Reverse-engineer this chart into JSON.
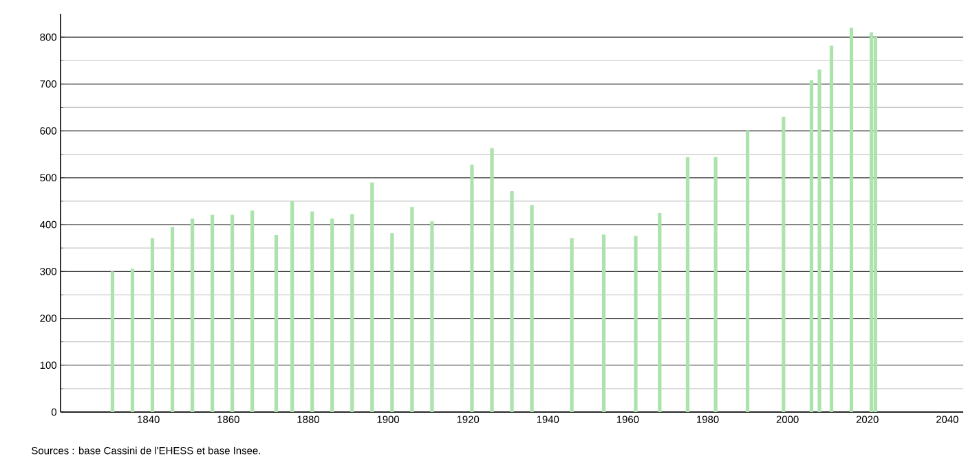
{
  "chart_data": {
    "type": "bar",
    "x": [
      1831,
      1836,
      1841,
      1846,
      1851,
      1856,
      1861,
      1866,
      1872,
      1876,
      1881,
      1886,
      1891,
      1896,
      1901,
      1906,
      1911,
      1921,
      1926,
      1931,
      1936,
      1946,
      1954,
      1962,
      1968,
      1975,
      1982,
      1990,
      1999,
      2006,
      2008,
      2011,
      2016,
      2021,
      2022
    ],
    "values": [
      300,
      306,
      371,
      395,
      413,
      421,
      421,
      430,
      378,
      450,
      428,
      413,
      422,
      490,
      382,
      438,
      407,
      528,
      563,
      472,
      442,
      371,
      379,
      376,
      425,
      544,
      544,
      600,
      630,
      708,
      731,
      782,
      820,
      810,
      800
    ],
    "color": "#ace3ac",
    "xlim": [
      1818,
      2044
    ],
    "xticks": [
      1840,
      1860,
      1880,
      1900,
      1920,
      1940,
      1960,
      1980,
      2000,
      2020,
      2040
    ],
    "ylim": [
      0,
      850
    ],
    "yticks": [
      0,
      100,
      200,
      300,
      400,
      500,
      600,
      700,
      800
    ],
    "grid": "y",
    "annotations": [
      "Sources : base Cassini de l'EHESS et base Insee."
    ]
  }
}
